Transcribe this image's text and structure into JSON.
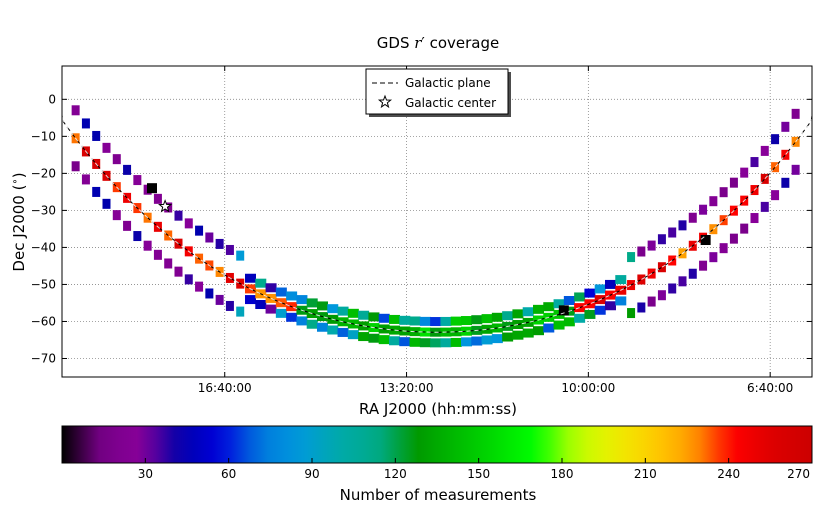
{
  "chart_data": [
    {
      "type": "heatmap",
      "title": "GDS r′ coverage",
      "title_parts": [
        "GDS ",
        "r",
        "′",
        " coverage"
      ],
      "xlabel": "RA J2000 (hh:mm:ss)",
      "ylabel": "Dec J2000 (°)",
      "ylabel_parts": [
        "Dec J2000 (",
        "∘",
        ")"
      ],
      "ylim": [
        -75,
        9
      ],
      "x_axis": "RA, decreasing to the right",
      "xlim_hours": [
        19.65,
        5.9
      ],
      "x_ticks": [
        {
          "label": "16:40:00",
          "hours": 16.6667
        },
        {
          "label": "13:20:00",
          "hours": 13.3333
        },
        {
          "label": "10:00:00",
          "hours": 10.0
        },
        {
          "label": "6:40:00",
          "hours": 6.6667
        }
      ],
      "y_ticks": [
        0,
        -10,
        -20,
        -30,
        -40,
        -50,
        -60,
        -70
      ],
      "grid": true,
      "legend": {
        "placement": "top-center",
        "entries": [
          {
            "label": "Galactic plane",
            "style": "dashed-line"
          },
          {
            "label": "Galactic center",
            "style": "star-marker"
          }
        ]
      },
      "galactic_center": {
        "ra_hours": 17.76,
        "dec": -28.94
      },
      "galactic_plane_dec_range": [
        -62.9,
        9
      ],
      "fields": {
        "description": "fields along the Galactic plane; each field has a measurement count shown by colour",
        "ra_hours_range": [
          19.4,
          6.2
        ],
        "counts_mostly": "15-40 (purple/blue) away from the plane line, 120-160 (green) near Dec -60, 230-260 (red) along the plane line",
        "black_fields_near": [
          {
            "ra_hours": 18.0,
            "dec": -24
          },
          {
            "ra_hours": 7.85,
            "dec": -38
          },
          {
            "ra_hours": 10.45,
            "dec": -57
          }
        ]
      },
      "colorbar": {
        "label": "Number of measurements",
        "colormap": "nipy_spectral",
        "range": [
          0,
          270
        ],
        "ticks": [
          30,
          60,
          90,
          120,
          150,
          180,
          210,
          240,
          270
        ]
      }
    }
  ]
}
